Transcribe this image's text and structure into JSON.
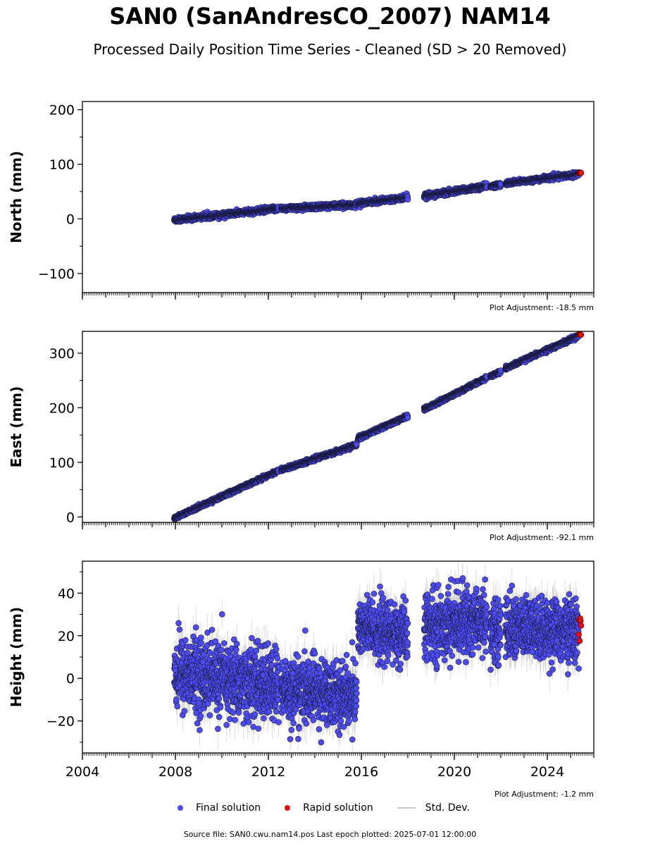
{
  "header": {
    "title": "SAN0 (SanAndresCO_2007) NAM14",
    "subtitle": "Processed Daily Position Time Series - Cleaned (SD > 20 Removed)"
  },
  "legend": {
    "final_label": "Final solution",
    "rapid_label": "Rapid solution",
    "std_label": "Std. Dev."
  },
  "footer": {
    "source": "Source file: SAN0.cwu.nam14.pos  Last epoch plotted: 2025-07-01 12:00:00"
  },
  "colors": {
    "final": "#4c4cf2",
    "rapid": "#e01010",
    "std_dev": "#c8c8c8",
    "marker_edge": "#1a1a40"
  },
  "chart_data": [
    {
      "type": "scatter",
      "name": "north",
      "ylabel": "North (mm)",
      "ylim": [
        -135,
        215
      ],
      "yticks": [
        -100,
        0,
        100,
        200
      ],
      "ytick_labels": [
        "−100",
        "0",
        "100",
        "200"
      ],
      "xlim": [
        2004.0,
        2026.0
      ],
      "xticks": [
        2004,
        2008,
        2012,
        2016,
        2020,
        2024
      ],
      "show_xtick_labels": false,
      "adjustment": "Plot Adjustment: -18.5 mm",
      "segments": [
        {
          "x": [
            2007.95,
            2012.45
          ],
          "y": [
            -2,
            19
          ],
          "noise": 2.2
        },
        {
          "x": [
            2012.55,
            2015.8
          ],
          "y": [
            19,
            26
          ],
          "noise": 2.2
        },
        {
          "x": [
            2015.85,
            2018.0
          ],
          "y": [
            28,
            40
          ],
          "noise": 2.0
        },
        {
          "x": [
            2018.7,
            2021.4
          ],
          "y": [
            42,
            60
          ],
          "noise": 2.2
        },
        {
          "x": [
            2021.55,
            2022.0
          ],
          "y": [
            60,
            63
          ],
          "noise": 2.0
        },
        {
          "x": [
            2022.2,
            2025.35
          ],
          "y": [
            65,
            82
          ],
          "noise": 2.0
        }
      ],
      "rapid": {
        "x": [
          2025.35,
          2025.45
        ],
        "y": [
          83,
          85
        ]
      }
    },
    {
      "type": "scatter",
      "name": "east",
      "ylabel": "East (mm)",
      "ylim": [
        -10,
        340
      ],
      "yticks": [
        0,
        100,
        200,
        300
      ],
      "ytick_labels": [
        "0",
        "100",
        "200",
        "300"
      ],
      "xlim": [
        2004.0,
        2026.0
      ],
      "xticks": [
        2004,
        2008,
        2012,
        2016,
        2020,
        2024
      ],
      "show_xtick_labels": false,
      "adjustment": "Plot Adjustment: -92.1 mm",
      "segments": [
        {
          "x": [
            2007.95,
            2012.45
          ],
          "y": [
            -2,
            85
          ],
          "noise": 1.6
        },
        {
          "x": [
            2012.55,
            2015.8
          ],
          "y": [
            86,
            132
          ],
          "noise": 1.6
        },
        {
          "x": [
            2015.85,
            2018.0
          ],
          "y": [
            144,
            185
          ],
          "noise": 1.6
        },
        {
          "x": [
            2018.7,
            2021.4
          ],
          "y": [
            197,
            255
          ],
          "noise": 1.6
        },
        {
          "x": [
            2021.55,
            2022.0
          ],
          "y": [
            258,
            266
          ],
          "noise": 1.6
        },
        {
          "x": [
            2022.2,
            2025.35
          ],
          "y": [
            272,
            332
          ],
          "noise": 1.6
        }
      ],
      "rapid": {
        "x": [
          2025.35,
          2025.45
        ],
        "y": [
          333,
          335
        ]
      }
    },
    {
      "type": "scatter",
      "name": "height",
      "ylabel": "Height (mm)",
      "ylim": [
        -35,
        55
      ],
      "yticks": [
        -20,
        0,
        20,
        40
      ],
      "ytick_labels": [
        "−20",
        "0",
        "20",
        "40"
      ],
      "xlim": [
        2004.0,
        2026.0
      ],
      "xticks": [
        2004,
        2008,
        2012,
        2016,
        2020,
        2024
      ],
      "xtick_labels": [
        "2004",
        "2008",
        "2012",
        "2016",
        "2020",
        "2024"
      ],
      "show_xtick_labels": true,
      "adjustment": "Plot Adjustment: -1.2 mm",
      "segments": [
        {
          "x": [
            2007.95,
            2012.45
          ],
          "y": [
            3,
            -4
          ],
          "noise": 8.5
        },
        {
          "x": [
            2012.55,
            2015.8
          ],
          "y": [
            -5,
            -8
          ],
          "noise": 7.5
        },
        {
          "x": [
            2015.85,
            2018.0
          ],
          "y": [
            24,
            20
          ],
          "noise": 7.0
        },
        {
          "x": [
            2018.7,
            2021.4
          ],
          "y": [
            24,
            28
          ],
          "noise": 7.5
        },
        {
          "x": [
            2021.55,
            2022.0
          ],
          "y": [
            22,
            22
          ],
          "noise": 7.0
        },
        {
          "x": [
            2022.2,
            2025.35
          ],
          "y": [
            24,
            22
          ],
          "noise": 7.0
        }
      ],
      "rapid": {
        "x": [
          2025.35,
          2025.45
        ],
        "y": [
          17,
          30
        ]
      }
    }
  ]
}
